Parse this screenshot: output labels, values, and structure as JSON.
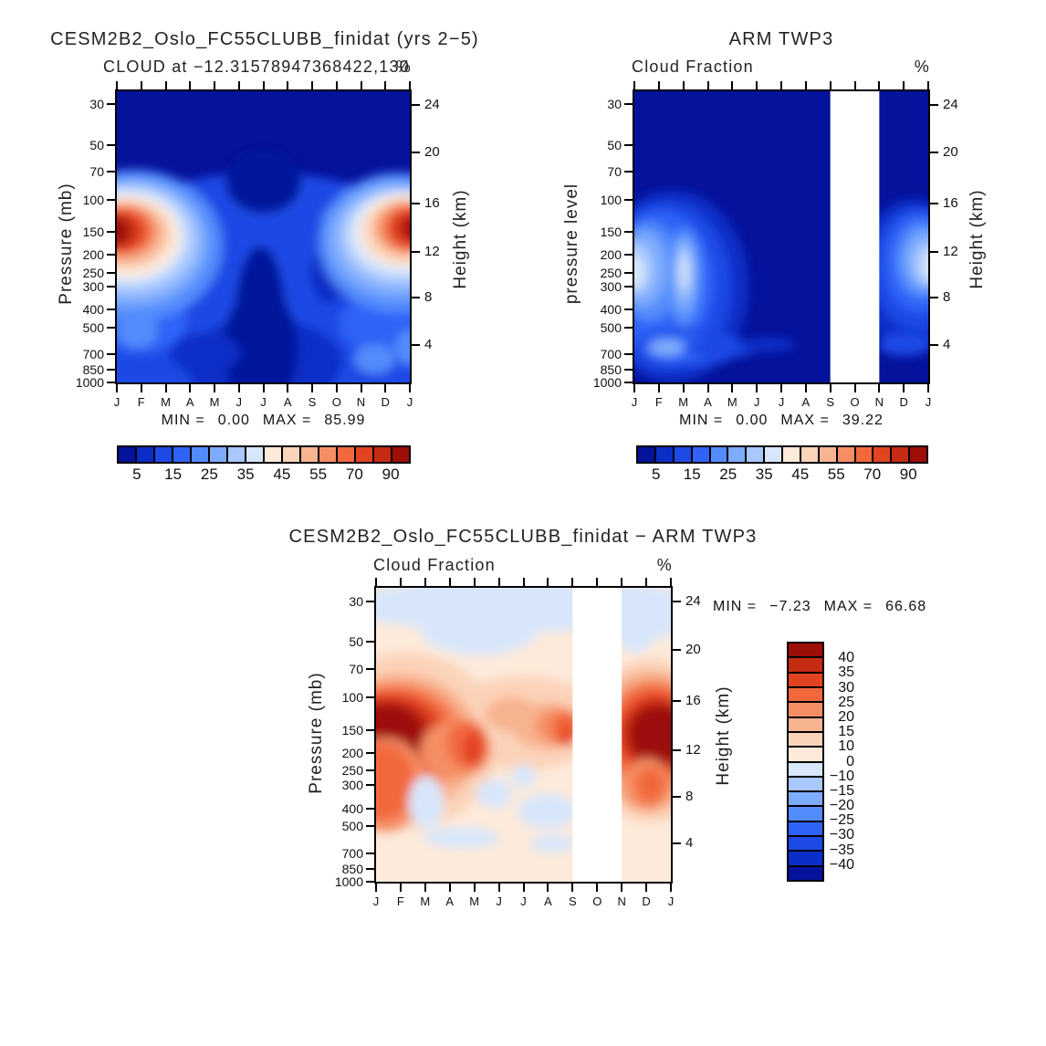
{
  "palette": [
    "#05129b",
    "#0b2ec7",
    "#1d49e5",
    "#2f63f7",
    "#528cfc",
    "#7dabfd",
    "#a8c8fe",
    "#d8e6fb",
    "#fdeada",
    "#fbd3b9",
    "#f8b390",
    "#f58e64",
    "#f2683c",
    "#e24321",
    "#c52a12",
    "#9e0e08"
  ],
  "months": [
    "J",
    "F",
    "M",
    "A",
    "M",
    "J",
    "J",
    "A",
    "S",
    "O",
    "N",
    "D",
    "J"
  ],
  "pressure_ticks": [
    30,
    50,
    70,
    100,
    150,
    200,
    250,
    300,
    400,
    500,
    700,
    850,
    1000
  ],
  "height_ticks": [
    24,
    20,
    16,
    12,
    8,
    4
  ],
  "chart_data": [
    {
      "id": "model",
      "type": "filled_contour",
      "title": "CESM2B2_Oslo_FC55CLUBB_finidat (yrs 2−5)",
      "subtitle_left": "CLOUD at −12.31578947368422,130",
      "subtitle_right": "%",
      "y_left_label": "Pressure (mb)",
      "y_right_label": "Height (km)",
      "x_tick_labels": [
        "J",
        "F",
        "M",
        "A",
        "M",
        "J",
        "J",
        "A",
        "S",
        "O",
        "N",
        "D",
        "J"
      ],
      "stats": {
        "min_label": "MIN =",
        "min": "0.00",
        "max_label": "MAX =",
        "max": "85.99"
      },
      "colorbar": {
        "orientation": "horizontal",
        "levels": [
          5,
          10,
          15,
          20,
          25,
          30,
          35,
          40,
          45,
          50,
          55,
          60,
          70,
          80,
          90
        ],
        "labeled_levels": [
          5,
          15,
          25,
          35,
          45,
          55,
          70,
          90
        ]
      },
      "missing_band": null,
      "field": {
        "base": 0,
        "blobs": [
          [
            50,
            74,
            74,
            46,
            2
          ],
          [
            8,
            78,
            16,
            12,
            3
          ],
          [
            90,
            80,
            14,
            10,
            3
          ],
          [
            80,
            45,
            10,
            8,
            4
          ],
          [
            72,
            63,
            6,
            10,
            1
          ],
          [
            50,
            31,
            13,
            11,
            0
          ],
          [
            49,
            80,
            9,
            27,
            0
          ],
          [
            50,
            93,
            27,
            15,
            1
          ],
          [
            49,
            88,
            13,
            20,
            0
          ],
          [
            30,
            90,
            12,
            7,
            1
          ],
          [
            7,
            82,
            7,
            6,
            4
          ],
          [
            6,
            53,
            30,
            26,
            4
          ],
          [
            5,
            52,
            26,
            22,
            5
          ],
          [
            5,
            51,
            23,
            19,
            6
          ],
          [
            4,
            50,
            20,
            16.5,
            7
          ],
          [
            4,
            50,
            17.5,
            14,
            8
          ],
          [
            3,
            49,
            15.5,
            12,
            9
          ],
          [
            3,
            49,
            13.5,
            10.5,
            10
          ],
          [
            2,
            48,
            11.5,
            9,
            11
          ],
          [
            2,
            48,
            10,
            8,
            12
          ],
          [
            1,
            48,
            8.5,
            7,
            13
          ],
          [
            0,
            48,
            7,
            6,
            14
          ],
          [
            -1,
            48,
            5,
            4.5,
            15
          ],
          [
            96,
            52,
            27,
            24,
            4
          ],
          [
            96,
            51,
            24,
            20,
            5
          ],
          [
            97,
            50,
            21,
            17,
            6
          ],
          [
            97,
            49,
            18,
            14.5,
            7
          ],
          [
            98,
            48,
            15.5,
            12.5,
            8
          ],
          [
            98,
            48,
            13.5,
            11,
            9
          ],
          [
            99,
            47,
            11.5,
            9.5,
            10
          ],
          [
            99,
            47,
            10,
            8.5,
            11
          ],
          [
            100,
            47,
            8.5,
            7.5,
            12
          ],
          [
            100,
            47,
            7,
            6.5,
            13
          ],
          [
            101,
            47,
            5.5,
            5,
            14
          ],
          [
            102,
            47,
            4,
            4,
            15
          ],
          [
            88,
            92,
            7,
            5,
            4
          ],
          [
            100,
            88,
            5,
            6,
            4
          ]
        ]
      }
    },
    {
      "id": "obs",
      "type": "filled_contour",
      "title": "ARM TWP3",
      "subtitle_left": "Cloud Fraction",
      "subtitle_right": "%",
      "y_left_label": "pressure level",
      "y_right_label": "Height (km)",
      "x_tick_labels": [
        "J",
        "F",
        "M",
        "A",
        "M",
        "J",
        "J",
        "A",
        "S",
        "O",
        "N",
        "D",
        "J"
      ],
      "stats": {
        "min_label": "MIN =",
        "min": "0.00",
        "max_label": "MAX =",
        "max": "39.22"
      },
      "colorbar": {
        "orientation": "horizontal",
        "levels": [
          5,
          10,
          15,
          20,
          25,
          30,
          35,
          40,
          45,
          50,
          55,
          60,
          70,
          80,
          90
        ],
        "labeled_levels": [
          5,
          15,
          25,
          35,
          45,
          55,
          70,
          90
        ]
      },
      "missing_band": {
        "from_index": 8,
        "to_index": 10
      },
      "field": {
        "base": 0,
        "blobs": [
          [
            13,
            67,
            26,
            33,
            1
          ],
          [
            11,
            67,
            22,
            29,
            2
          ],
          [
            9,
            66,
            18,
            25,
            3
          ],
          [
            5,
            62,
            11,
            17,
            4
          ],
          [
            3,
            61,
            8,
            13,
            5
          ],
          [
            1,
            61,
            5.5,
            9,
            6
          ],
          [
            0,
            62,
            3.5,
            6,
            7
          ],
          [
            17,
            64,
            6,
            17,
            4
          ],
          [
            17,
            63,
            4,
            13,
            5
          ],
          [
            17,
            62,
            2.5,
            9,
            6
          ],
          [
            17,
            62,
            1.3,
            6,
            7
          ],
          [
            18,
            88,
            18,
            7,
            2
          ],
          [
            15,
            88,
            12,
            5,
            3
          ],
          [
            11,
            88,
            6,
            3,
            5
          ],
          [
            30,
            88,
            12,
            3.5,
            2
          ],
          [
            45,
            87,
            10,
            2.5,
            1
          ],
          [
            95,
            63,
            19,
            26,
            1
          ],
          [
            96,
            61,
            15,
            21,
            2
          ],
          [
            97,
            59,
            12,
            17,
            3
          ],
          [
            98,
            58,
            9,
            13,
            4
          ],
          [
            99,
            58,
            7,
            10,
            5
          ],
          [
            100,
            59,
            5,
            7.5,
            6
          ],
          [
            101,
            60,
            3,
            5.5,
            7
          ],
          [
            92,
            87,
            9,
            4,
            2
          ]
        ]
      }
    },
    {
      "id": "diff",
      "type": "filled_contour",
      "title": "CESM2B2_Oslo_FC55CLUBB_finidat − ARM TWP3",
      "subtitle_left": "Cloud Fraction",
      "subtitle_right": "%",
      "y_left_label": "Pressure (mb)",
      "y_right_label": "Height (km)",
      "x_tick_labels": [
        "J",
        "F",
        "M",
        "A",
        "M",
        "J",
        "J",
        "A",
        "S",
        "O",
        "N",
        "D",
        "J"
      ],
      "stats": {
        "min_label": "MIN =",
        "min": "−7.23",
        "max_label": "MAX =",
        "max": "66.68"
      },
      "colorbar": {
        "orientation": "vertical",
        "levels": [
          40,
          35,
          30,
          25,
          20,
          15,
          10,
          0,
          -10,
          -15,
          -20,
          -25,
          -30,
          -35,
          -40
        ],
        "labeled_levels": [
          40,
          35,
          30,
          25,
          20,
          15,
          10,
          0,
          -10,
          -15,
          -20,
          -25,
          -30,
          -35,
          -40
        ]
      },
      "missing_band": {
        "from_index": 8,
        "to_index": 10
      },
      "field": {
        "base": 8,
        "blobs": [
          [
            50,
            6,
            62,
            9,
            7
          ],
          [
            35,
            14,
            20,
            9,
            7
          ],
          [
            88,
            12,
            8,
            10,
            7
          ],
          [
            97,
            10,
            6,
            7,
            7
          ],
          [
            10,
            52,
            32,
            30,
            9
          ],
          [
            93,
            52,
            22,
            28,
            9
          ],
          [
            50,
            46,
            28,
            16,
            9
          ],
          [
            8,
            53,
            27,
            24,
            10
          ],
          [
            7,
            52,
            24,
            20,
            11
          ],
          [
            6,
            51,
            21,
            17,
            12
          ],
          [
            5,
            50,
            18,
            14,
            13
          ],
          [
            4,
            50,
            15.5,
            12,
            14
          ],
          [
            3,
            50,
            13.5,
            10.5,
            15
          ],
          [
            3,
            67,
            14,
            16,
            11
          ],
          [
            2,
            66,
            11,
            13,
            12
          ],
          [
            27,
            55,
            12,
            10,
            11
          ],
          [
            31,
            53,
            7,
            8,
            12
          ],
          [
            33,
            55,
            3.5,
            6,
            13
          ],
          [
            46,
            43,
            9,
            6,
            10
          ],
          [
            58,
            47,
            12,
            8,
            10
          ],
          [
            62,
            47,
            8,
            6,
            11
          ],
          [
            64,
            48,
            4.5,
            6,
            12
          ],
          [
            65,
            50,
            2,
            3.5,
            13
          ],
          [
            93,
            52,
            20,
            24,
            10
          ],
          [
            94,
            51,
            17,
            20,
            11
          ],
          [
            94,
            50,
            15,
            17,
            12
          ],
          [
            95,
            50,
            13,
            14,
            13
          ],
          [
            95,
            50,
            11.5,
            12,
            14
          ],
          [
            96,
            50,
            10,
            10,
            15
          ],
          [
            92,
            67,
            8,
            9,
            11
          ],
          [
            93,
            67,
            5,
            6,
            12
          ],
          [
            17,
            73,
            6,
            9,
            7
          ],
          [
            29,
            85,
            13,
            3.5,
            7
          ],
          [
            40,
            70,
            6,
            5,
            7
          ],
          [
            58,
            76,
            10,
            6,
            7
          ],
          [
            60,
            87,
            8,
            3,
            7
          ],
          [
            50,
            64,
            4,
            4,
            7
          ]
        ]
      }
    }
  ]
}
